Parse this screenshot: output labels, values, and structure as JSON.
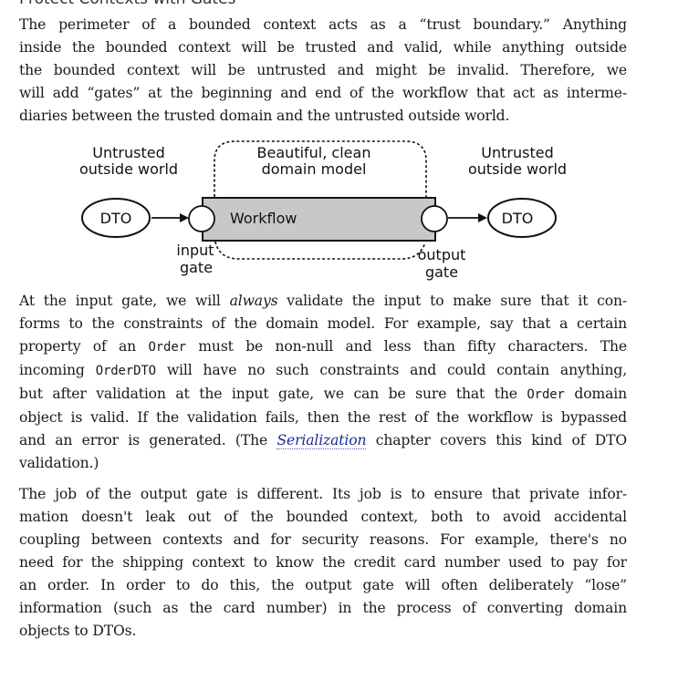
{
  "heading_fragment": "Protect Contexts with Gates",
  "paragraph1": {
    "lines": [
      "The perimeter of a bounded context acts as a “trust boundary.” Anything",
      "inside the bounded context will be trusted and valid, while anything outside",
      "the bounded context will be untrusted and might be invalid. Therefore, we",
      "will add “gates” at the beginning and end of the workflow that act as interme-",
      "diaries between the trusted domain and the untrusted outside world."
    ]
  },
  "diagram": {
    "left_label_line1": "Untrusted",
    "left_label_line2": "outside world",
    "center_label_line1": "Beautiful, clean",
    "center_label_line2": "domain model",
    "right_label_line1": "Untrusted",
    "right_label_line2": "outside world",
    "left_dto": "DTO",
    "right_dto": "DTO",
    "workflow": "Workflow",
    "input_gate_line1": "input",
    "input_gate_line2": "gate",
    "output_gate_line1": "output",
    "output_gate_line2": "gate"
  },
  "paragraph2": {
    "l1_a": "At the input gate, we will ",
    "l1_em": "always",
    "l1_b": " validate the input to make sure that it con-",
    "l2": "forms to the constraints of the domain model. For example, say that a certain",
    "l3_a": "property of an ",
    "l3_code": "Order",
    "l3_b": " must be non-null and less than fifty characters. The",
    "l4_a": "incoming ",
    "l4_code": "OrderDTO",
    "l4_b": " will have no such constraints and could contain anything,",
    "l5_a": "but after validation at the input gate, we can be sure that the ",
    "l5_code": "Order",
    "l5_b": " domain",
    "l6": "object is valid. If the validation fails, then the rest of the workflow is bypassed",
    "l7_a": "and an error is generated. (The ",
    "l7_link": "Serialization",
    "l7_b": " chapter covers this kind of DTO",
    "l8": "validation.)"
  },
  "paragraph3": {
    "lines": [
      "The job of the output gate is different. Its job is to ensure that private infor-",
      "mation doesn't leak out of the bounded context, both to avoid accidental",
      "coupling between contexts and for security reasons. For example, there's no",
      "need for the shipping context to know the credit card number used to pay for",
      "an order. In order to do this, the output gate will often deliberately “lose”",
      "information (such as the card number) in the process of converting domain",
      "objects to DTOs."
    ]
  }
}
